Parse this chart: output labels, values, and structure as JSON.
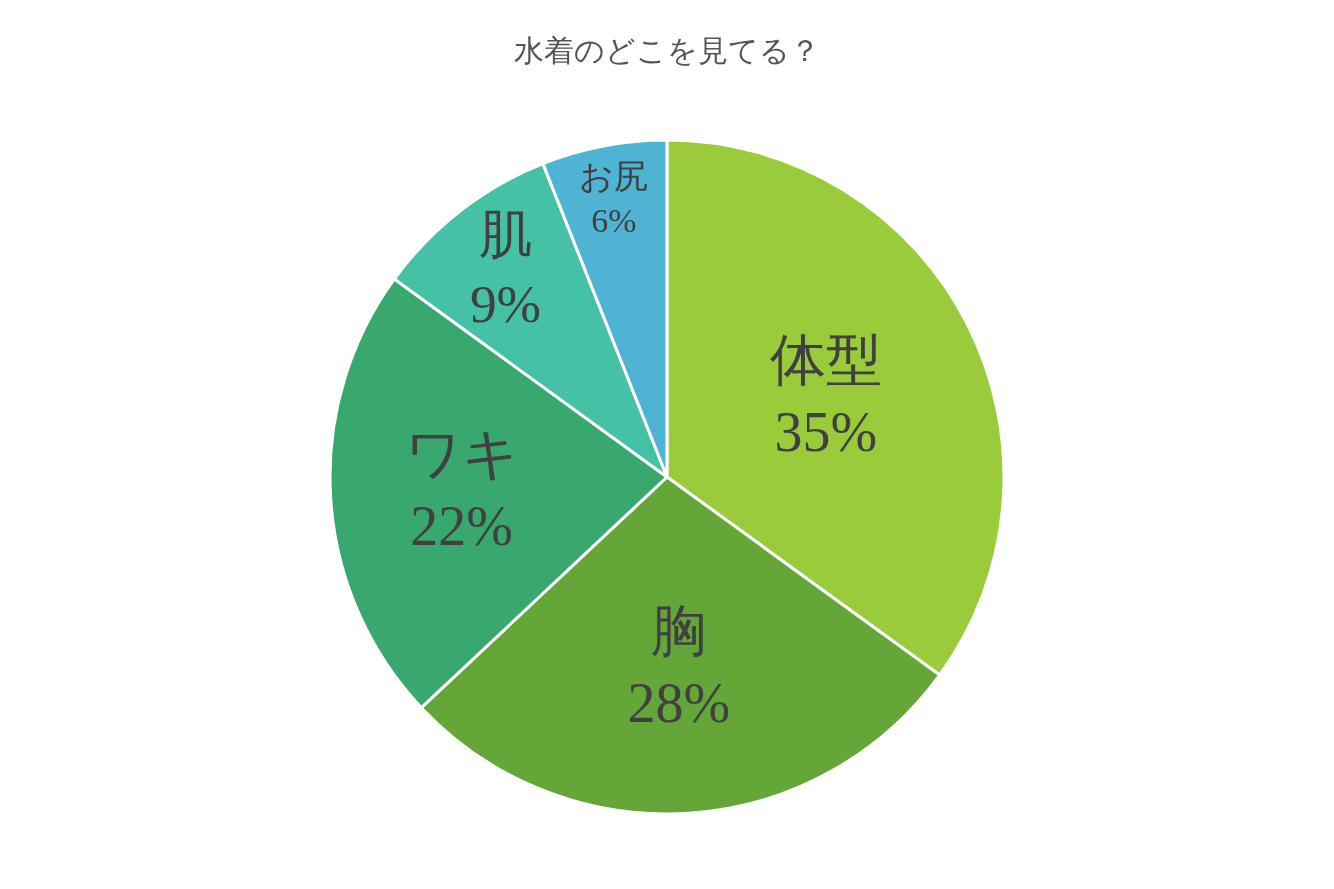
{
  "chart_data": {
    "type": "pie",
    "title": "水着のどこを見てる？",
    "categories": [
      "体型",
      "胸",
      "ワキ",
      "肌",
      "お尻"
    ],
    "values": [
      35,
      28,
      22,
      9,
      6
    ],
    "value_labels": [
      "35%",
      "28%",
      "22%",
      "9%",
      "6%"
    ],
    "colors": [
      "#9acb3a",
      "#64a637",
      "#38a86e",
      "#45c1a5",
      "#4fb3d3"
    ],
    "legend": false
  }
}
